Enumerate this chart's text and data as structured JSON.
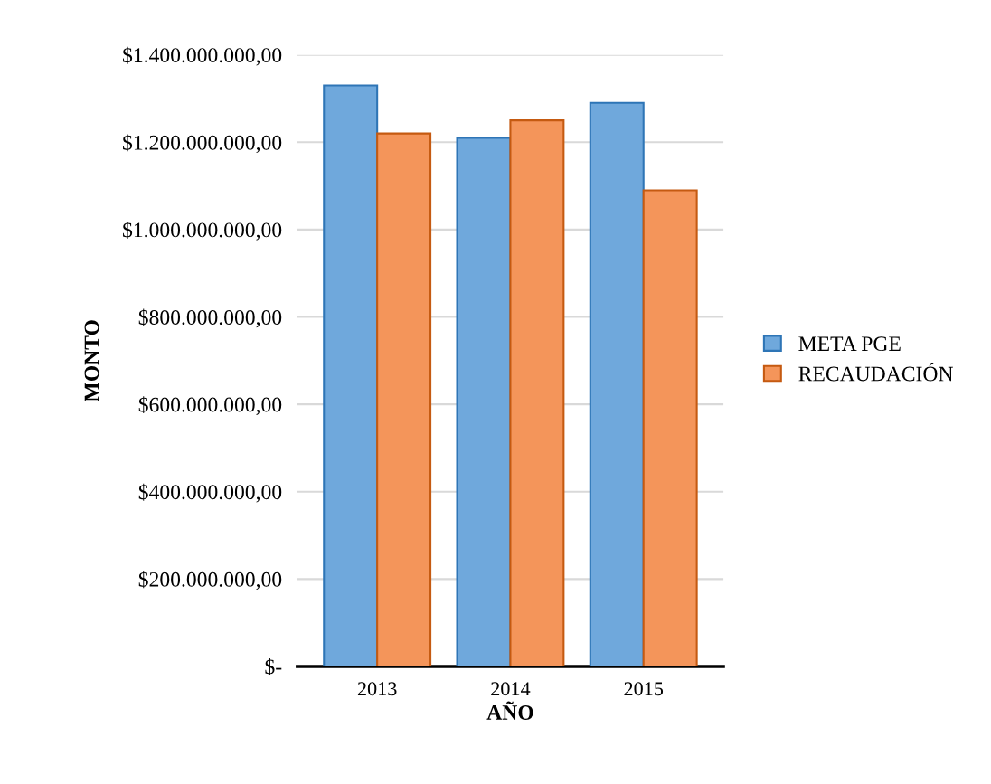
{
  "chart_data": {
    "type": "bar",
    "xlabel": "AÑO",
    "ylabel": "MONTO",
    "categories": [
      "2013",
      "2014",
      "2015"
    ],
    "series": [
      {
        "name": "META PGE",
        "color": "#6fa8dc",
        "values": [
          1330000000,
          1210000000,
          1290000000
        ]
      },
      {
        "name": "RECAUDACIÓN",
        "color": "#f4955a",
        "values": [
          1220000000,
          1250000000,
          1090000000
        ]
      }
    ],
    "ylim": [
      0,
      1400000000
    ],
    "yticks": [
      {
        "value": 0,
        "label": "$-"
      },
      {
        "value": 200000000,
        "label": "$200.000.000,00"
      },
      {
        "value": 400000000,
        "label": "$400.000.000,00"
      },
      {
        "value": 600000000,
        "label": "$600.000.000,00"
      },
      {
        "value": 800000000,
        "label": "$800.000.000,00"
      },
      {
        "value": 1000000000,
        "label": "$1.000.000.000,00"
      },
      {
        "value": 1200000000,
        "label": "$1.200.000.000,00"
      },
      {
        "value": 1400000000,
        "label": "$1.400.000.000,00"
      }
    ],
    "grid": "y",
    "legend": "right"
  }
}
